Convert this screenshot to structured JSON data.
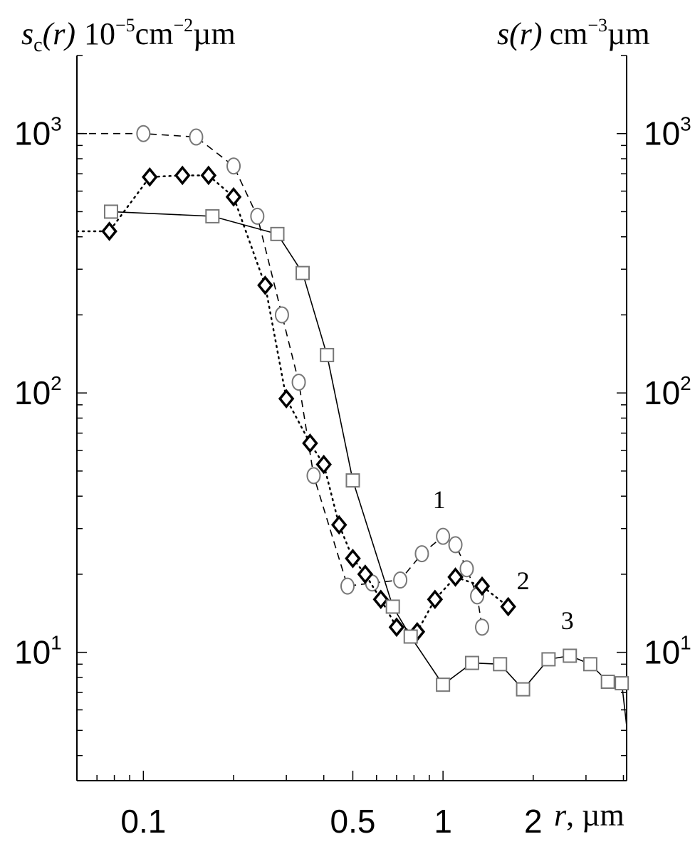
{
  "chart_data": {
    "type": "scatter",
    "xscale": "log",
    "yscale": "log",
    "xlim": [
      0.06,
      4.1
    ],
    "ylim": [
      3.2,
      2000
    ],
    "x_ticks": [
      {
        "value": 0.1,
        "label": "0.1"
      },
      {
        "value": 0.5,
        "label": "0.5"
      },
      {
        "value": 1,
        "label": "1"
      },
      {
        "value": 2,
        "label": "2"
      }
    ],
    "y_ticks": [
      {
        "value": 10,
        "base": "10",
        "exp": "1"
      },
      {
        "value": 100,
        "base": "10",
        "exp": "2"
      },
      {
        "value": 1000,
        "base": "10",
        "exp": "3"
      }
    ],
    "xlabel": {
      "var": "r",
      "sep": ", ",
      "unit": "µm"
    },
    "ylabel_left": {
      "var": "s",
      "sub": "c",
      "arg": "(r)",
      "pre": "10",
      "pre_exp": "−5",
      "unit": "cm",
      "unit_exp": "−2",
      "unit2": "µm"
    },
    "ylabel_right": {
      "var": "s",
      "arg": "(r)",
      "unit": "cm",
      "unit_exp": "−3",
      "unit2": "µm"
    },
    "series": [
      {
        "name": "1",
        "marker": "circle",
        "line": "dashed",
        "color": "#777777",
        "leading_x": 0.06,
        "label_at": [
          0.97,
          36
        ],
        "x": [
          0.1,
          0.15,
          0.2,
          0.24,
          0.29,
          0.33,
          0.37,
          0.48,
          0.58,
          0.72,
          0.85,
          1.0,
          1.1,
          1.2,
          1.3,
          1.35
        ],
        "y": [
          1000,
          970,
          750,
          480,
          200,
          110,
          48,
          18,
          18.5,
          19,
          24,
          28,
          26,
          21,
          16.5,
          12.5
        ]
      },
      {
        "name": "2",
        "marker": "diamond",
        "line": "dotted",
        "color": "#000000",
        "leading_x": 0.06,
        "label_at": [
          1.85,
          17.5
        ],
        "x": [
          0.077,
          0.105,
          0.135,
          0.165,
          0.2,
          0.255,
          0.3,
          0.36,
          0.4,
          0.45,
          0.5,
          0.55,
          0.62,
          0.7,
          0.82,
          0.94,
          1.1,
          1.35,
          1.65
        ],
        "y": [
          420,
          680,
          690,
          690,
          570,
          260,
          95,
          64,
          53,
          31,
          23,
          20,
          16,
          12.5,
          12,
          16,
          19.5,
          18,
          15
        ]
      },
      {
        "name": "3",
        "marker": "square",
        "line": "solid",
        "color": "#777777",
        "trailing_y": 5.2,
        "label_at": [
          2.6,
          12.3
        ],
        "x": [
          0.078,
          0.17,
          0.28,
          0.34,
          0.41,
          0.5,
          0.68,
          0.78,
          1.0,
          1.25,
          1.55,
          1.85,
          2.25,
          2.65,
          3.1,
          3.55,
          3.95
        ],
        "y": [
          500,
          480,
          410,
          290,
          140,
          46,
          15,
          11.5,
          7.5,
          9.1,
          9,
          7.2,
          9.4,
          9.7,
          9,
          7.7,
          7.6
        ]
      }
    ]
  }
}
